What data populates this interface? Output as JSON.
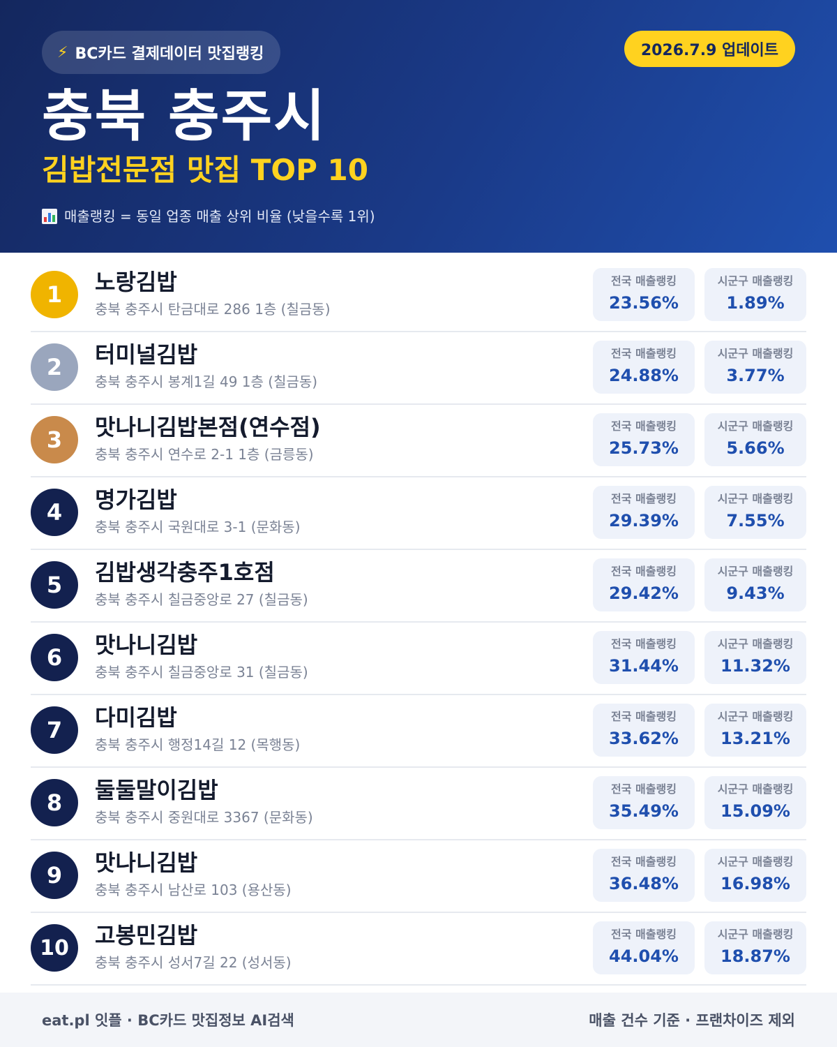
{
  "header": {
    "source_label": "BC카드 결제데이터 맛집랭킹",
    "update_label": "2026.7.9 업데이트",
    "city": "충북 충주시",
    "subtitle": "김밥전문점 맛집 TOP 10",
    "note": "매출랭킹 = 동일 업종 매출 상위 비율 (낮을수록 1위)",
    "icons": [
      "lightning-icon",
      "bar-chart-icon"
    ]
  },
  "stat_labels": {
    "national": "전국 매출랭킹",
    "local": "시군구 매출랭킹"
  },
  "rank_colors": {
    "gold": "#f0b400",
    "silver": "#9aa6bd",
    "bronze": "#c98a4b",
    "default": "#13214f"
  },
  "restaurants": [
    {
      "rank": "1",
      "name": "노랑김밥",
      "address": "충북 충주시 탄금대로 286 1층 (칠금동)",
      "national": "23.56%",
      "local": "1.89%"
    },
    {
      "rank": "2",
      "name": "터미널김밥",
      "address": "충북 충주시 봉계1길 49 1층 (칠금동)",
      "national": "24.88%",
      "local": "3.77%"
    },
    {
      "rank": "3",
      "name": "맛나니김밥본점(연수점)",
      "address": "충북 충주시 연수로 2-1 1층 (금릉동)",
      "national": "25.73%",
      "local": "5.66%"
    },
    {
      "rank": "4",
      "name": "명가김밥",
      "address": "충북 충주시 국원대로 3-1 (문화동)",
      "national": "29.39%",
      "local": "7.55%"
    },
    {
      "rank": "5",
      "name": "김밥생각충주1호점",
      "address": "충북 충주시 칠금중앙로 27 (칠금동)",
      "national": "29.42%",
      "local": "9.43%"
    },
    {
      "rank": "6",
      "name": "맛나니김밥",
      "address": "충북 충주시 칠금중앙로 31 (칠금동)",
      "national": "31.44%",
      "local": "11.32%"
    },
    {
      "rank": "7",
      "name": "다미김밥",
      "address": "충북 충주시 행정14길 12 (목행동)",
      "national": "33.62%",
      "local": "13.21%"
    },
    {
      "rank": "8",
      "name": "둘둘말이김밥",
      "address": "충북 충주시 중원대로 3367 (문화동)",
      "national": "35.49%",
      "local": "15.09%"
    },
    {
      "rank": "9",
      "name": "맛나니김밥",
      "address": "충북 충주시 남산로 103 (용산동)",
      "national": "36.48%",
      "local": "16.98%"
    },
    {
      "rank": "10",
      "name": "고봉민김밥",
      "address": "충북 충주시 성서7길 22 (성서동)",
      "national": "44.04%",
      "local": "18.87%"
    }
  ],
  "footer": {
    "left": "eat.pl 잇플 · BC카드 맛집정보 AI검색",
    "right": "매출 건수 기준 · 프랜차이즈 제외"
  }
}
